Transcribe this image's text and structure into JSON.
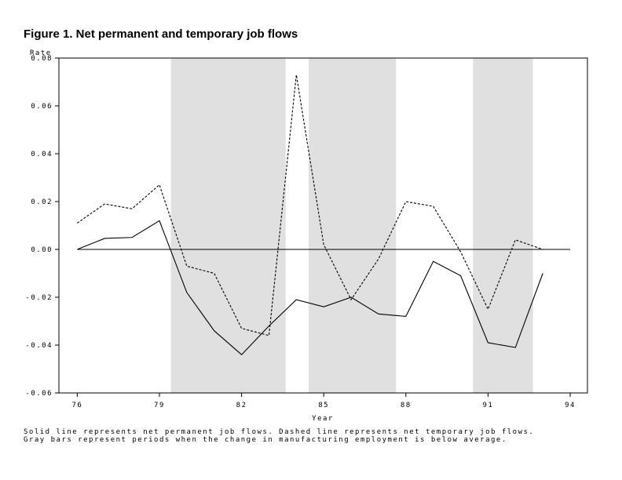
{
  "chart_data": {
    "type": "line",
    "title": "Figure 1.  Net permanent and temporary job flows",
    "y_label": "Rate",
    "x_label": "Year",
    "notes": [
      "Solid line represents net permanent job flows.  Dashed line represents net temporary job flows.",
      "Gray bars represent periods when the change in manufacturing employment is below average."
    ],
    "x": [
      76,
      77,
      78,
      79,
      80,
      81,
      82,
      83,
      84,
      85,
      86,
      87,
      88,
      89,
      90,
      91,
      92,
      93
    ],
    "series": [
      {
        "style": "solid",
        "color": "#000000",
        "values": [
          0.0,
          0.0046,
          0.005,
          0.012,
          -0.018,
          -0.034,
          -0.044,
          -0.032,
          -0.021,
          -0.024,
          -0.02,
          -0.027,
          -0.028,
          -0.005,
          -0.011,
          -0.039,
          -0.041,
          -0.01
        ]
      },
      {
        "style": "dashed",
        "color": "#000000",
        "values": [
          0.011,
          0.019,
          0.017,
          0.027,
          -0.007,
          -0.01,
          -0.033,
          -0.036,
          0.073,
          0.002,
          -0.021,
          -0.004,
          0.02,
          0.018,
          -0.001,
          -0.025,
          0.004,
          0.0
        ]
      }
    ],
    "shaded_periods": [
      [
        79.42,
        83.61
      ],
      [
        84.45,
        87.64
      ],
      [
        90.45,
        92.64
      ]
    ],
    "shade_color": "#e0e0e0",
    "reference_line": 0,
    "xlim": [
      75.33,
      94.63
    ],
    "xticks": [
      76,
      79,
      82,
      85,
      88,
      91,
      94
    ],
    "ylim": [
      -0.06,
      0.08
    ],
    "yticks": [
      0.08,
      0.06,
      0.04,
      0.02,
      {
        "value": 0,
        "label": "0.00"
      },
      -0.02,
      -0.04,
      -0.06
    ]
  }
}
